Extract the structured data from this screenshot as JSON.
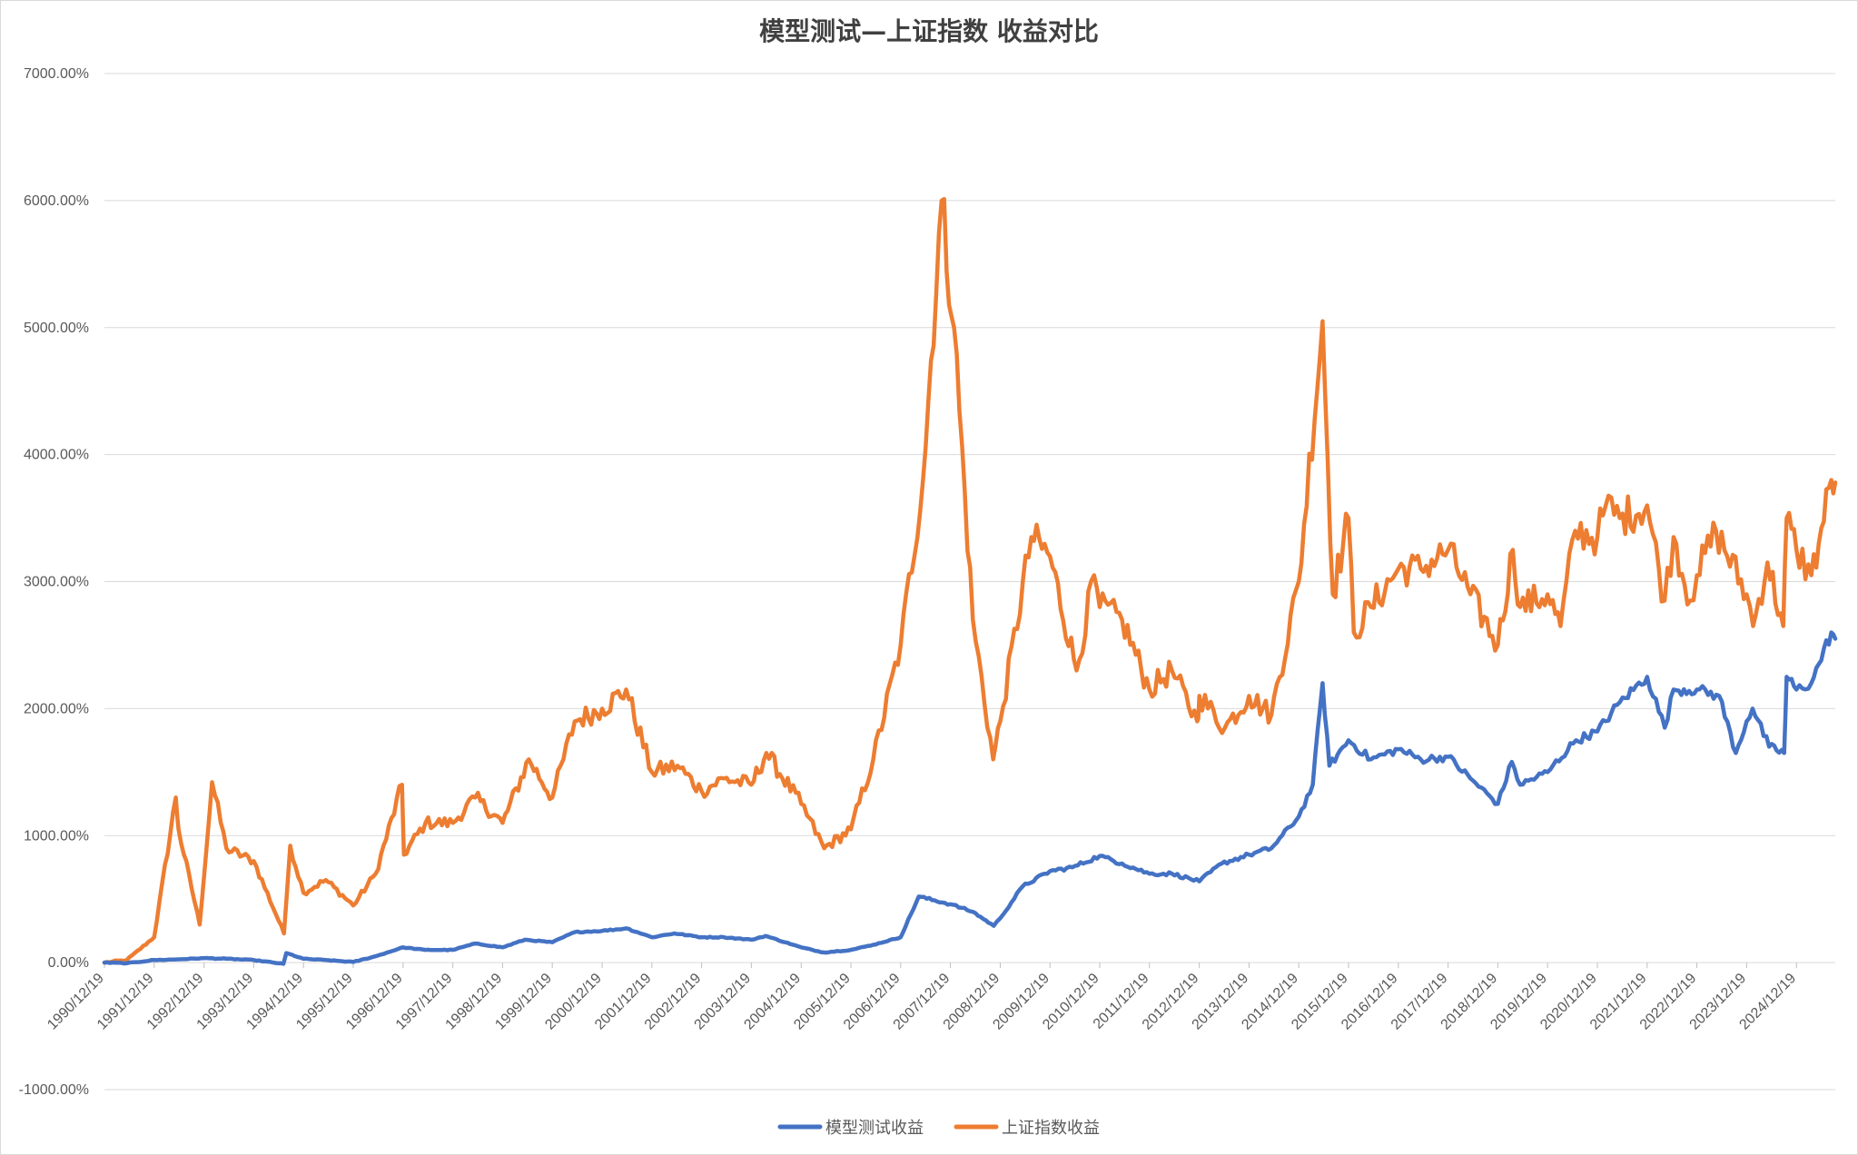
{
  "chart_data": {
    "type": "line",
    "title": "模型测试—上证指数 收益对比",
    "xlabel": "",
    "ylabel": "",
    "ylim": [
      -1000,
      7000
    ],
    "y_unit": "%",
    "y_ticks": [
      -1000,
      0,
      1000,
      2000,
      3000,
      4000,
      5000,
      6000,
      7000
    ],
    "y_tick_labels": [
      "-1000.00%",
      "0.00%",
      "1000.00%",
      "2000.00%",
      "3000.00%",
      "4000.00%",
      "5000.00%",
      "6000.00%",
      "7000.00%"
    ],
    "x_tick_labels": [
      "1990/12/19",
      "1991/12/19",
      "1992/12/19",
      "1993/12/19",
      "1994/12/19",
      "1995/12/19",
      "1996/12/19",
      "1997/12/19",
      "1998/12/19",
      "1999/12/19",
      "2000/12/19",
      "2001/12/19",
      "2002/12/19",
      "2003/12/19",
      "2004/12/19",
      "2005/12/19",
      "2006/12/19",
      "2007/12/19",
      "2008/12/19",
      "2009/12/19",
      "2010/12/19",
      "2011/12/19",
      "2012/12/19",
      "2013/12/19",
      "2014/12/19",
      "2015/12/19",
      "2016/12/19",
      "2017/12/19",
      "2018/12/19",
      "2019/12/19",
      "2020/12/19",
      "2021/12/19",
      "2022/12/19",
      "2023/12/19",
      "2024/12/19"
    ],
    "x_range": [
      "1990-12-19",
      "2025-09-30"
    ],
    "grid": true,
    "legend_position": "bottom",
    "series": [
      {
        "name": "模型测试收益",
        "color": "#4472C4",
        "points": [
          [
            "1990-12-19",
            0
          ],
          [
            "1991-06-01",
            -5
          ],
          [
            "1991-12-19",
            20
          ],
          [
            "1992-06-01",
            25
          ],
          [
            "1992-12-19",
            35
          ],
          [
            "1993-06-01",
            30
          ],
          [
            "1993-12-19",
            20
          ],
          [
            "1994-07-25",
            -10
          ],
          [
            "1994-08-15",
            75
          ],
          [
            "1994-12-19",
            30
          ],
          [
            "1995-06-01",
            20
          ],
          [
            "1995-12-19",
            5
          ],
          [
            "1996-06-01",
            50
          ],
          [
            "1996-12-19",
            120
          ],
          [
            "1997-06-01",
            100
          ],
          [
            "1997-12-19",
            100
          ],
          [
            "1998-06-01",
            150
          ],
          [
            "1998-12-19",
            120
          ],
          [
            "1999-06-01",
            180
          ],
          [
            "1999-12-19",
            160
          ],
          [
            "2000-06-01",
            240
          ],
          [
            "2000-12-19",
            250
          ],
          [
            "2001-06-15",
            270
          ],
          [
            "2001-12-19",
            200
          ],
          [
            "2002-06-01",
            230
          ],
          [
            "2002-12-19",
            200
          ],
          [
            "2003-06-01",
            200
          ],
          [
            "2003-12-19",
            180
          ],
          [
            "2004-04-01",
            210
          ],
          [
            "2004-12-19",
            120
          ],
          [
            "2005-06-01",
            80
          ],
          [
            "2005-12-19",
            100
          ],
          [
            "2006-06-01",
            140
          ],
          [
            "2006-12-19",
            200
          ],
          [
            "2007-05-01",
            520
          ],
          [
            "2007-12-19",
            460
          ],
          [
            "2008-06-01",
            400
          ],
          [
            "2008-11-01",
            290
          ],
          [
            "2008-12-19",
            350
          ],
          [
            "2009-06-01",
            600
          ],
          [
            "2009-12-19",
            720
          ],
          [
            "2010-06-01",
            750
          ],
          [
            "2010-12-19",
            840
          ],
          [
            "2011-06-01",
            780
          ],
          [
            "2011-12-19",
            700
          ],
          [
            "2012-06-01",
            700
          ],
          [
            "2012-12-19",
            640
          ],
          [
            "2013-06-01",
            780
          ],
          [
            "2013-12-19",
            850
          ],
          [
            "2014-06-01",
            900
          ],
          [
            "2014-12-19",
            1150
          ],
          [
            "2015-04-01",
            1400
          ],
          [
            "2015-06-12",
            2200
          ],
          [
            "2015-08-01",
            1550
          ],
          [
            "2015-12-19",
            1750
          ],
          [
            "2016-06-01",
            1600
          ],
          [
            "2016-12-19",
            1680
          ],
          [
            "2017-06-01",
            1600
          ],
          [
            "2017-12-19",
            1620
          ],
          [
            "2018-06-01",
            1450
          ],
          [
            "2018-12-19",
            1250
          ],
          [
            "2019-04-01",
            1580
          ],
          [
            "2019-06-01",
            1400
          ],
          [
            "2019-12-19",
            1500
          ],
          [
            "2020-07-15",
            1750
          ],
          [
            "2020-12-19",
            1820
          ],
          [
            "2021-06-01",
            2050
          ],
          [
            "2021-12-19",
            2250
          ],
          [
            "2022-04-27",
            1850
          ],
          [
            "2022-07-01",
            2150
          ],
          [
            "2022-12-19",
            2150
          ],
          [
            "2023-06-01",
            2100
          ],
          [
            "2023-10-01",
            1650
          ],
          [
            "2023-12-19",
            1900
          ],
          [
            "2024-02-01",
            2000
          ],
          [
            "2024-06-01",
            1700
          ],
          [
            "2024-09-20",
            1650
          ],
          [
            "2024-10-08",
            2250
          ],
          [
            "2024-12-19",
            2150
          ],
          [
            "2025-04-07",
            2200
          ],
          [
            "2025-06-01",
            2350
          ],
          [
            "2025-09-01",
            2600
          ],
          [
            "2025-09-30",
            2550
          ]
        ]
      },
      {
        "name": "上证指数收益",
        "color": "#ED7D31",
        "points": [
          [
            "1990-12-19",
            0
          ],
          [
            "1991-06-01",
            20
          ],
          [
            "1991-12-19",
            200
          ],
          [
            "1992-05-26",
            1300
          ],
          [
            "1992-06-15",
            1050
          ],
          [
            "1992-11-17",
            300
          ],
          [
            "1993-02-16",
            1420
          ],
          [
            "1993-06-01",
            900
          ],
          [
            "1993-12-19",
            800
          ],
          [
            "1994-07-29",
            230
          ],
          [
            "1994-09-13",
            920
          ],
          [
            "1994-12-19",
            550
          ],
          [
            "1995-06-01",
            650
          ],
          [
            "1995-12-19",
            450
          ],
          [
            "1996-06-01",
            700
          ],
          [
            "1996-12-11",
            1400
          ],
          [
            "1996-12-25",
            850
          ],
          [
            "1997-06-01",
            1100
          ],
          [
            "1997-12-19",
            1100
          ],
          [
            "1998-06-01",
            1300
          ],
          [
            "1998-12-19",
            1100
          ],
          [
            "1999-06-30",
            1600
          ],
          [
            "1999-12-19",
            1300
          ],
          [
            "2000-06-01",
            1900
          ],
          [
            "2000-12-19",
            2000
          ],
          [
            "2001-06-13",
            2150
          ],
          [
            "2001-12-19",
            1500
          ],
          [
            "2002-06-25",
            1550
          ],
          [
            "2002-12-19",
            1350
          ],
          [
            "2003-06-01",
            1450
          ],
          [
            "2003-12-19",
            1400
          ],
          [
            "2004-04-07",
            1650
          ],
          [
            "2004-12-19",
            1250
          ],
          [
            "2005-06-06",
            900
          ],
          [
            "2005-12-19",
            1050
          ],
          [
            "2006-06-01",
            1600
          ],
          [
            "2006-12-19",
            2500
          ],
          [
            "2007-06-01",
            3800
          ],
          [
            "2007-10-16",
            6000
          ],
          [
            "2008-01-15",
            5000
          ],
          [
            "2008-06-01",
            2700
          ],
          [
            "2008-10-28",
            1600
          ],
          [
            "2008-12-19",
            1900
          ],
          [
            "2009-08-04",
            3350
          ],
          [
            "2009-12-19",
            3200
          ],
          [
            "2010-07-02",
            2300
          ],
          [
            "2010-11-08",
            3050
          ],
          [
            "2010-12-19",
            2800
          ],
          [
            "2011-06-01",
            2700
          ],
          [
            "2011-12-19",
            2150
          ],
          [
            "2012-06-01",
            2300
          ],
          [
            "2012-12-03",
            1900
          ],
          [
            "2012-12-19",
            2100
          ],
          [
            "2013-06-25",
            1850
          ],
          [
            "2013-12-19",
            2100
          ],
          [
            "2014-06-01",
            1950
          ],
          [
            "2014-12-19",
            3000
          ],
          [
            "2015-06-12",
            5050
          ],
          [
            "2015-08-26",
            2900
          ],
          [
            "2015-12-19",
            3500
          ],
          [
            "2016-01-27",
            2600
          ],
          [
            "2016-06-01",
            2800
          ],
          [
            "2016-12-19",
            3100
          ],
          [
            "2017-06-01",
            3100
          ],
          [
            "2017-12-19",
            3250
          ],
          [
            "2018-06-01",
            2900
          ],
          [
            "2018-12-19",
            2500
          ],
          [
            "2019-04-08",
            3250
          ],
          [
            "2019-06-01",
            2800
          ],
          [
            "2019-12-19",
            2900
          ],
          [
            "2020-03-23",
            2650
          ],
          [
            "2020-07-09",
            3400
          ],
          [
            "2020-12-19",
            3350
          ],
          [
            "2021-02-18",
            3600
          ],
          [
            "2021-06-01",
            3500
          ],
          [
            "2021-12-19",
            3600
          ],
          [
            "2022-04-26",
            2850
          ],
          [
            "2022-07-01",
            3350
          ],
          [
            "2022-10-31",
            2850
          ],
          [
            "2022-12-19",
            3050
          ],
          [
            "2023-05-09",
            3400
          ],
          [
            "2023-12-19",
            2900
          ],
          [
            "2024-02-05",
            2650
          ],
          [
            "2024-05-20",
            3150
          ],
          [
            "2024-09-13",
            2650
          ],
          [
            "2024-10-08",
            3500
          ],
          [
            "2024-12-19",
            3250
          ],
          [
            "2025-04-07",
            3050
          ],
          [
            "2025-06-01",
            3300
          ],
          [
            "2025-09-01",
            3800
          ],
          [
            "2025-09-30",
            3780
          ]
        ]
      }
    ]
  }
}
